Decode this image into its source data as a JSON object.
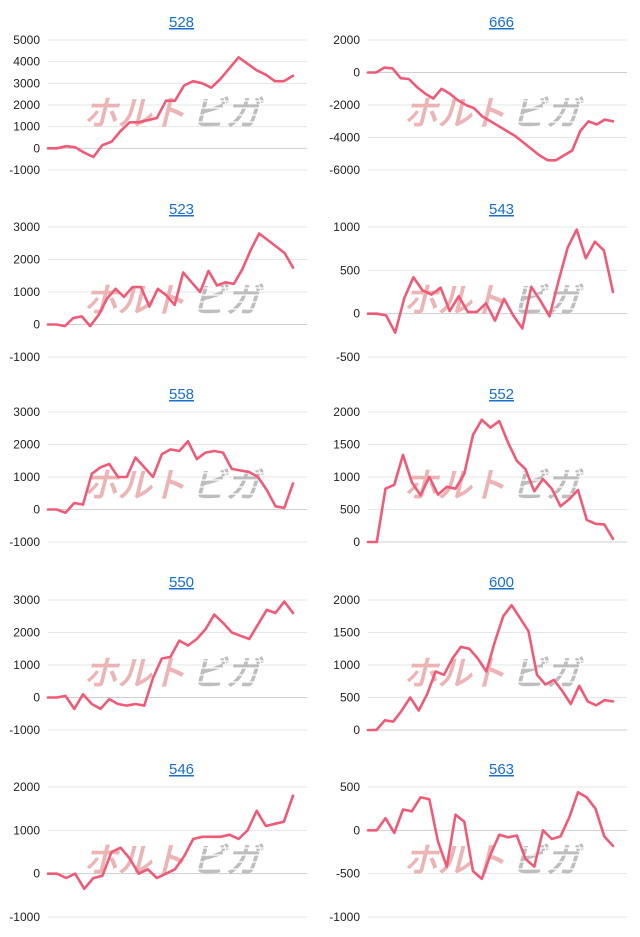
{
  "series_color": "#ef5b77",
  "title_color": "#1a6fc9",
  "watermark": {
    "text_left": "ホルト",
    "text_right": "ビガ",
    "color_left": "#e9a9a9",
    "color_right": "#b3b3b3"
  },
  "chart_data": [
    {
      "type": "line",
      "title": "528",
      "ylim": [
        -1000,
        5000
      ],
      "yticks": [
        5000,
        4000,
        3000,
        2000,
        1000,
        0,
        -1000
      ],
      "values": [
        0,
        0,
        100,
        50,
        -200,
        -400,
        150,
        300,
        800,
        1200,
        1200,
        1300,
        1400,
        2200,
        2200,
        2900,
        3100,
        3000,
        2800,
        3200,
        3700,
        4200,
        3900,
        3600,
        3400,
        3100,
        3100,
        3350
      ]
    },
    {
      "type": "line",
      "title": "666",
      "ylim": [
        -6000,
        2000
      ],
      "yticks": [
        2000,
        0,
        -2000,
        -4000,
        -6000
      ],
      "values": [
        0,
        0,
        300,
        250,
        -350,
        -400,
        -900,
        -1300,
        -1600,
        -1000,
        -1300,
        -1700,
        -2000,
        -2200,
        -2700,
        -3000,
        -3300,
        -3600,
        -3900,
        -4300,
        -4700,
        -5100,
        -5400,
        -5400,
        -5100,
        -4800,
        -3600,
        -3000,
        -3200,
        -2900,
        -3000
      ]
    },
    {
      "type": "line",
      "title": "523",
      "ylim": [
        -1000,
        3000
      ],
      "yticks": [
        3000,
        2000,
        1000,
        0,
        -1000
      ],
      "values": [
        0,
        0,
        -50,
        200,
        250,
        -50,
        300,
        800,
        1100,
        850,
        1150,
        1150,
        550,
        1100,
        900,
        600,
        1600,
        1300,
        1000,
        1650,
        1200,
        1300,
        1250,
        1700,
        2300,
        2800,
        2600,
        2400,
        2200,
        1750
      ]
    },
    {
      "type": "line",
      "title": "543",
      "ylim": [
        -500,
        1000
      ],
      "yticks": [
        1000,
        500,
        0,
        -500
      ],
      "values": [
        0,
        0,
        -20,
        -220,
        180,
        420,
        270,
        220,
        300,
        30,
        200,
        20,
        20,
        120,
        -80,
        170,
        -20,
        -170,
        310,
        150,
        -30,
        380,
        760,
        970,
        640,
        830,
        730,
        250
      ]
    },
    {
      "type": "line",
      "title": "558",
      "ylim": [
        -1000,
        3000
      ],
      "yticks": [
        3000,
        2000,
        1000,
        0,
        -1000
      ],
      "values": [
        0,
        0,
        -100,
        200,
        150,
        1100,
        1300,
        1400,
        1000,
        1000,
        1600,
        1300,
        1000,
        1700,
        1850,
        1800,
        2100,
        1550,
        1750,
        1800,
        1750,
        1250,
        1200,
        1150,
        1000,
        600,
        100,
        50,
        800
      ]
    },
    {
      "type": "line",
      "title": "552",
      "ylim": [
        0,
        2000
      ],
      "yticks": [
        2000,
        1500,
        1000,
        500,
        0
      ],
      "values": [
        0,
        0,
        820,
        880,
        1340,
        920,
        720,
        1000,
        730,
        850,
        820,
        1050,
        1650,
        1880,
        1760,
        1860,
        1530,
        1250,
        1120,
        780,
        970,
        820,
        550,
        660,
        800,
        340,
        280,
        270,
        50
      ]
    },
    {
      "type": "line",
      "title": "550",
      "ylim": [
        -1000,
        3000
      ],
      "yticks": [
        3000,
        2000,
        1000,
        0,
        -1000
      ],
      "values": [
        0,
        0,
        50,
        -350,
        100,
        -200,
        -350,
        -50,
        -200,
        -250,
        -200,
        -250,
        600,
        1200,
        1250,
        1750,
        1600,
        1800,
        2100,
        2550,
        2300,
        2000,
        1900,
        1800,
        2250,
        2700,
        2600,
        2950,
        2600
      ]
    },
    {
      "type": "line",
      "title": "600",
      "ylim": [
        0,
        2000
      ],
      "yticks": [
        2000,
        1500,
        1000,
        500,
        0
      ],
      "values": [
        0,
        0,
        150,
        130,
        300,
        500,
        300,
        550,
        900,
        850,
        1100,
        1280,
        1250,
        1100,
        900,
        1350,
        1750,
        1920,
        1720,
        1520,
        850,
        700,
        770,
        600,
        400,
        680,
        440,
        380,
        460,
        440
      ]
    },
    {
      "type": "line",
      "title": "546",
      "ylim": [
        -1000,
        2000
      ],
      "yticks": [
        2000,
        1000,
        0,
        -1000
      ],
      "values": [
        0,
        0,
        -100,
        0,
        -350,
        -100,
        -50,
        500,
        600,
        350,
        0,
        100,
        -100,
        0,
        100,
        400,
        800,
        850,
        850,
        850,
        900,
        800,
        1000,
        1450,
        1100,
        1150,
        1200,
        1800
      ]
    },
    {
      "type": "line",
      "title": "563",
      "ylim": [
        -1000,
        500
      ],
      "yticks": [
        500,
        0,
        -500,
        -1000
      ],
      "values": [
        0,
        0,
        140,
        -30,
        240,
        220,
        380,
        360,
        -130,
        -420,
        180,
        100,
        -470,
        -560,
        -280,
        -50,
        -80,
        -60,
        -330,
        -420,
        0,
        -100,
        -70,
        150,
        440,
        380,
        250,
        -70,
        -180
      ]
    }
  ]
}
